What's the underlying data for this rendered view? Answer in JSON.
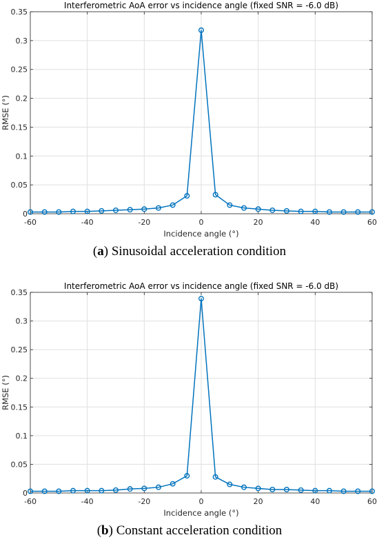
{
  "chart_data": [
    {
      "type": "line",
      "title": "Interferometric AoA error vs incidence angle (fixed SNR = -6.0 dB)",
      "xlabel": "Incidence angle (°)",
      "ylabel": "RMSE (°)",
      "xlim": [
        -60,
        60
      ],
      "ylim": [
        0,
        0.35
      ],
      "xticks": [
        -60,
        -40,
        -20,
        0,
        20,
        40,
        60
      ],
      "yticks": [
        0,
        0.05,
        0.1,
        0.15,
        0.2,
        0.25,
        0.3,
        0.35
      ],
      "ytick_labels": [
        "0",
        "0.05",
        "0.1",
        "0.15",
        "0.2",
        "0.25",
        "0.3",
        "0.35"
      ],
      "grid": true,
      "marker": "circle",
      "color": "#0072BD",
      "x": [
        -60,
        -55,
        -50,
        -45,
        -40,
        -35,
        -30,
        -25,
        -20,
        -15,
        -10,
        -5,
        0,
        5,
        10,
        15,
        20,
        25,
        30,
        35,
        40,
        45,
        50,
        55,
        60
      ],
      "y": [
        0.003,
        0.003,
        0.003,
        0.004,
        0.004,
        0.005,
        0.006,
        0.007,
        0.008,
        0.01,
        0.015,
        0.031,
        0.318,
        0.033,
        0.015,
        0.01,
        0.008,
        0.006,
        0.005,
        0.004,
        0.004,
        0.003,
        0.003,
        0.003,
        0.003
      ]
    },
    {
      "type": "line",
      "title": "Interferometric AoA error vs incidence angle (fixed SNR = -6.0 dB)",
      "xlabel": "Incidence angle (°)",
      "ylabel": "RMSE (°)",
      "xlim": [
        -60,
        60
      ],
      "ylim": [
        0,
        0.35
      ],
      "xticks": [
        -60,
        -40,
        -20,
        0,
        20,
        40,
        60
      ],
      "yticks": [
        0,
        0.05,
        0.1,
        0.15,
        0.2,
        0.25,
        0.3,
        0.35
      ],
      "ytick_labels": [
        "0",
        "0.05",
        "0.1",
        "0.15",
        "0.2",
        "0.25",
        "0.3",
        "0.35"
      ],
      "grid": true,
      "marker": "circle",
      "color": "#0072BD",
      "x": [
        -60,
        -55,
        -50,
        -45,
        -40,
        -35,
        -30,
        -25,
        -20,
        -15,
        -10,
        -5,
        0,
        5,
        10,
        15,
        20,
        25,
        30,
        35,
        40,
        45,
        50,
        55,
        60
      ],
      "y": [
        0.003,
        0.003,
        0.003,
        0.004,
        0.004,
        0.004,
        0.005,
        0.007,
        0.008,
        0.01,
        0.016,
        0.03,
        0.339,
        0.028,
        0.015,
        0.01,
        0.008,
        0.006,
        0.006,
        0.005,
        0.004,
        0.004,
        0.003,
        0.003,
        0.003
      ]
    }
  ],
  "captions": [
    {
      "letter": "a",
      "text": " Sinusoidal acceleration condition"
    },
    {
      "letter": "b",
      "text": " Constant acceleration condition"
    }
  ]
}
